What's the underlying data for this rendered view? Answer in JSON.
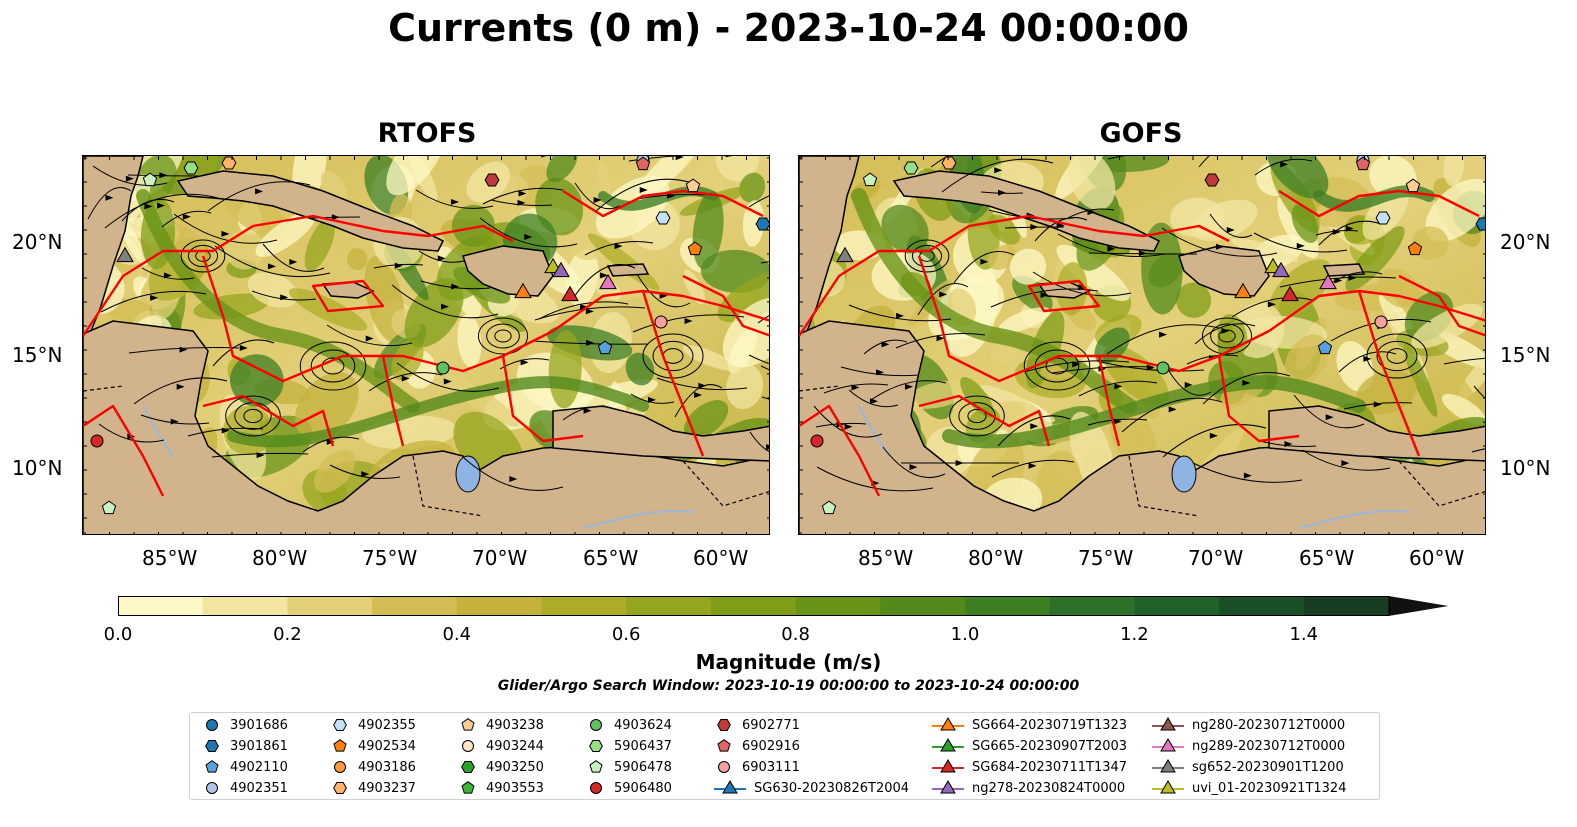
{
  "title": "Currents (0 m) - 2023-10-24 00:00:00",
  "panels": [
    {
      "title": "RTOFS"
    },
    {
      "title": "GOFS"
    }
  ],
  "lat_labels": [
    "20°N",
    "15°N",
    "10°N"
  ],
  "lon_labels": [
    "85°W",
    "80°W",
    "75°W",
    "70°W",
    "65°W",
    "60°W"
  ],
  "colorbar": {
    "label": "Magnitude (m/s)",
    "ticks": [
      "0.0",
      "0.2",
      "0.4",
      "0.6",
      "0.8",
      "1.0",
      "1.2",
      "1.4"
    ],
    "range": [
      0.0,
      1.5
    ],
    "extend": "max",
    "colors": [
      "#fdf8c6",
      "#f1e5a1",
      "#e3d07a",
      "#d4bd55",
      "#c4b13e",
      "#aead2a",
      "#96a51f",
      "#7f9d18",
      "#6a9418",
      "#53891d",
      "#3e7f24",
      "#2d7129",
      "#21612b",
      "#1b4f28",
      "#183d22"
    ]
  },
  "search_window": "Glider/Argo Search Window: 2023-10-19 00:00:00 to 2023-10-24 00:00:00",
  "colors": {
    "land": "#d2b48c",
    "lake": "#8fb3e3",
    "eez": "#ff0000",
    "streamline": "#000000"
  },
  "legend": {
    "items": [
      {
        "label": "3901686",
        "marker": "circle",
        "color": "#1f77b4"
      },
      {
        "label": "3901861",
        "marker": "hexagon",
        "color": "#1f77b4"
      },
      {
        "label": "4902110",
        "marker": "pentagon",
        "color": "#5aa0e0"
      },
      {
        "label": "4902351",
        "marker": "circle",
        "color": "#aec7e8"
      },
      {
        "label": "4902355",
        "marker": "hexagon",
        "color": "#c6e0f5"
      },
      {
        "label": "4902534",
        "marker": "pentagon",
        "color": "#ff7f0e"
      },
      {
        "label": "4903186",
        "marker": "circle",
        "color": "#ff9a3c"
      },
      {
        "label": "4903237",
        "marker": "hexagon",
        "color": "#ffb36b"
      },
      {
        "label": "4903238",
        "marker": "pentagon",
        "color": "#ffcc99"
      },
      {
        "label": "4903244",
        "marker": "circle",
        "color": "#ffe4c4"
      },
      {
        "label": "4903250",
        "marker": "hexagon",
        "color": "#2ca02c"
      },
      {
        "label": "4903553",
        "marker": "pentagon",
        "color": "#3cb43c"
      },
      {
        "label": "4903624",
        "marker": "circle",
        "color": "#5fc15f"
      },
      {
        "label": "5906437",
        "marker": "hexagon",
        "color": "#98df8a"
      },
      {
        "label": "5906478",
        "marker": "pentagon",
        "color": "#c8f0c0"
      },
      {
        "label": "5906480",
        "marker": "circle",
        "color": "#d62728"
      },
      {
        "label": "6902771",
        "marker": "hexagon",
        "color": "#c03a3a"
      },
      {
        "label": "6902916",
        "marker": "pentagon",
        "color": "#e06666"
      },
      {
        "label": "6903111",
        "marker": "circle",
        "color": "#f4a0a0"
      },
      {
        "label": "SG630-20230826T2004",
        "marker": "triangle-line",
        "color": "#1f77b4"
      },
      {
        "label": "SG664-20230719T1323",
        "marker": "triangle-line",
        "color": "#ff7f0e"
      },
      {
        "label": "SG665-20230907T2003",
        "marker": "triangle-line",
        "color": "#2ca02c"
      },
      {
        "label": "SG684-20230711T1347",
        "marker": "triangle-line",
        "color": "#d62728"
      },
      {
        "label": "ng278-20230824T0000",
        "marker": "triangle-line",
        "color": "#9467bd"
      },
      {
        "label": "ng280-20230712T0000",
        "marker": "triangle-line",
        "color": "#8c564b"
      },
      {
        "label": "ng289-20230712T0000",
        "marker": "triangle-line",
        "color": "#e377c2"
      },
      {
        "label": "sg652-20230901T1200",
        "marker": "triangle-line",
        "color": "#7f7f7f"
      },
      {
        "label": "uvi_01-20230921T1324",
        "marker": "triangle-line",
        "color": "#bcbd22"
      }
    ]
  }
}
